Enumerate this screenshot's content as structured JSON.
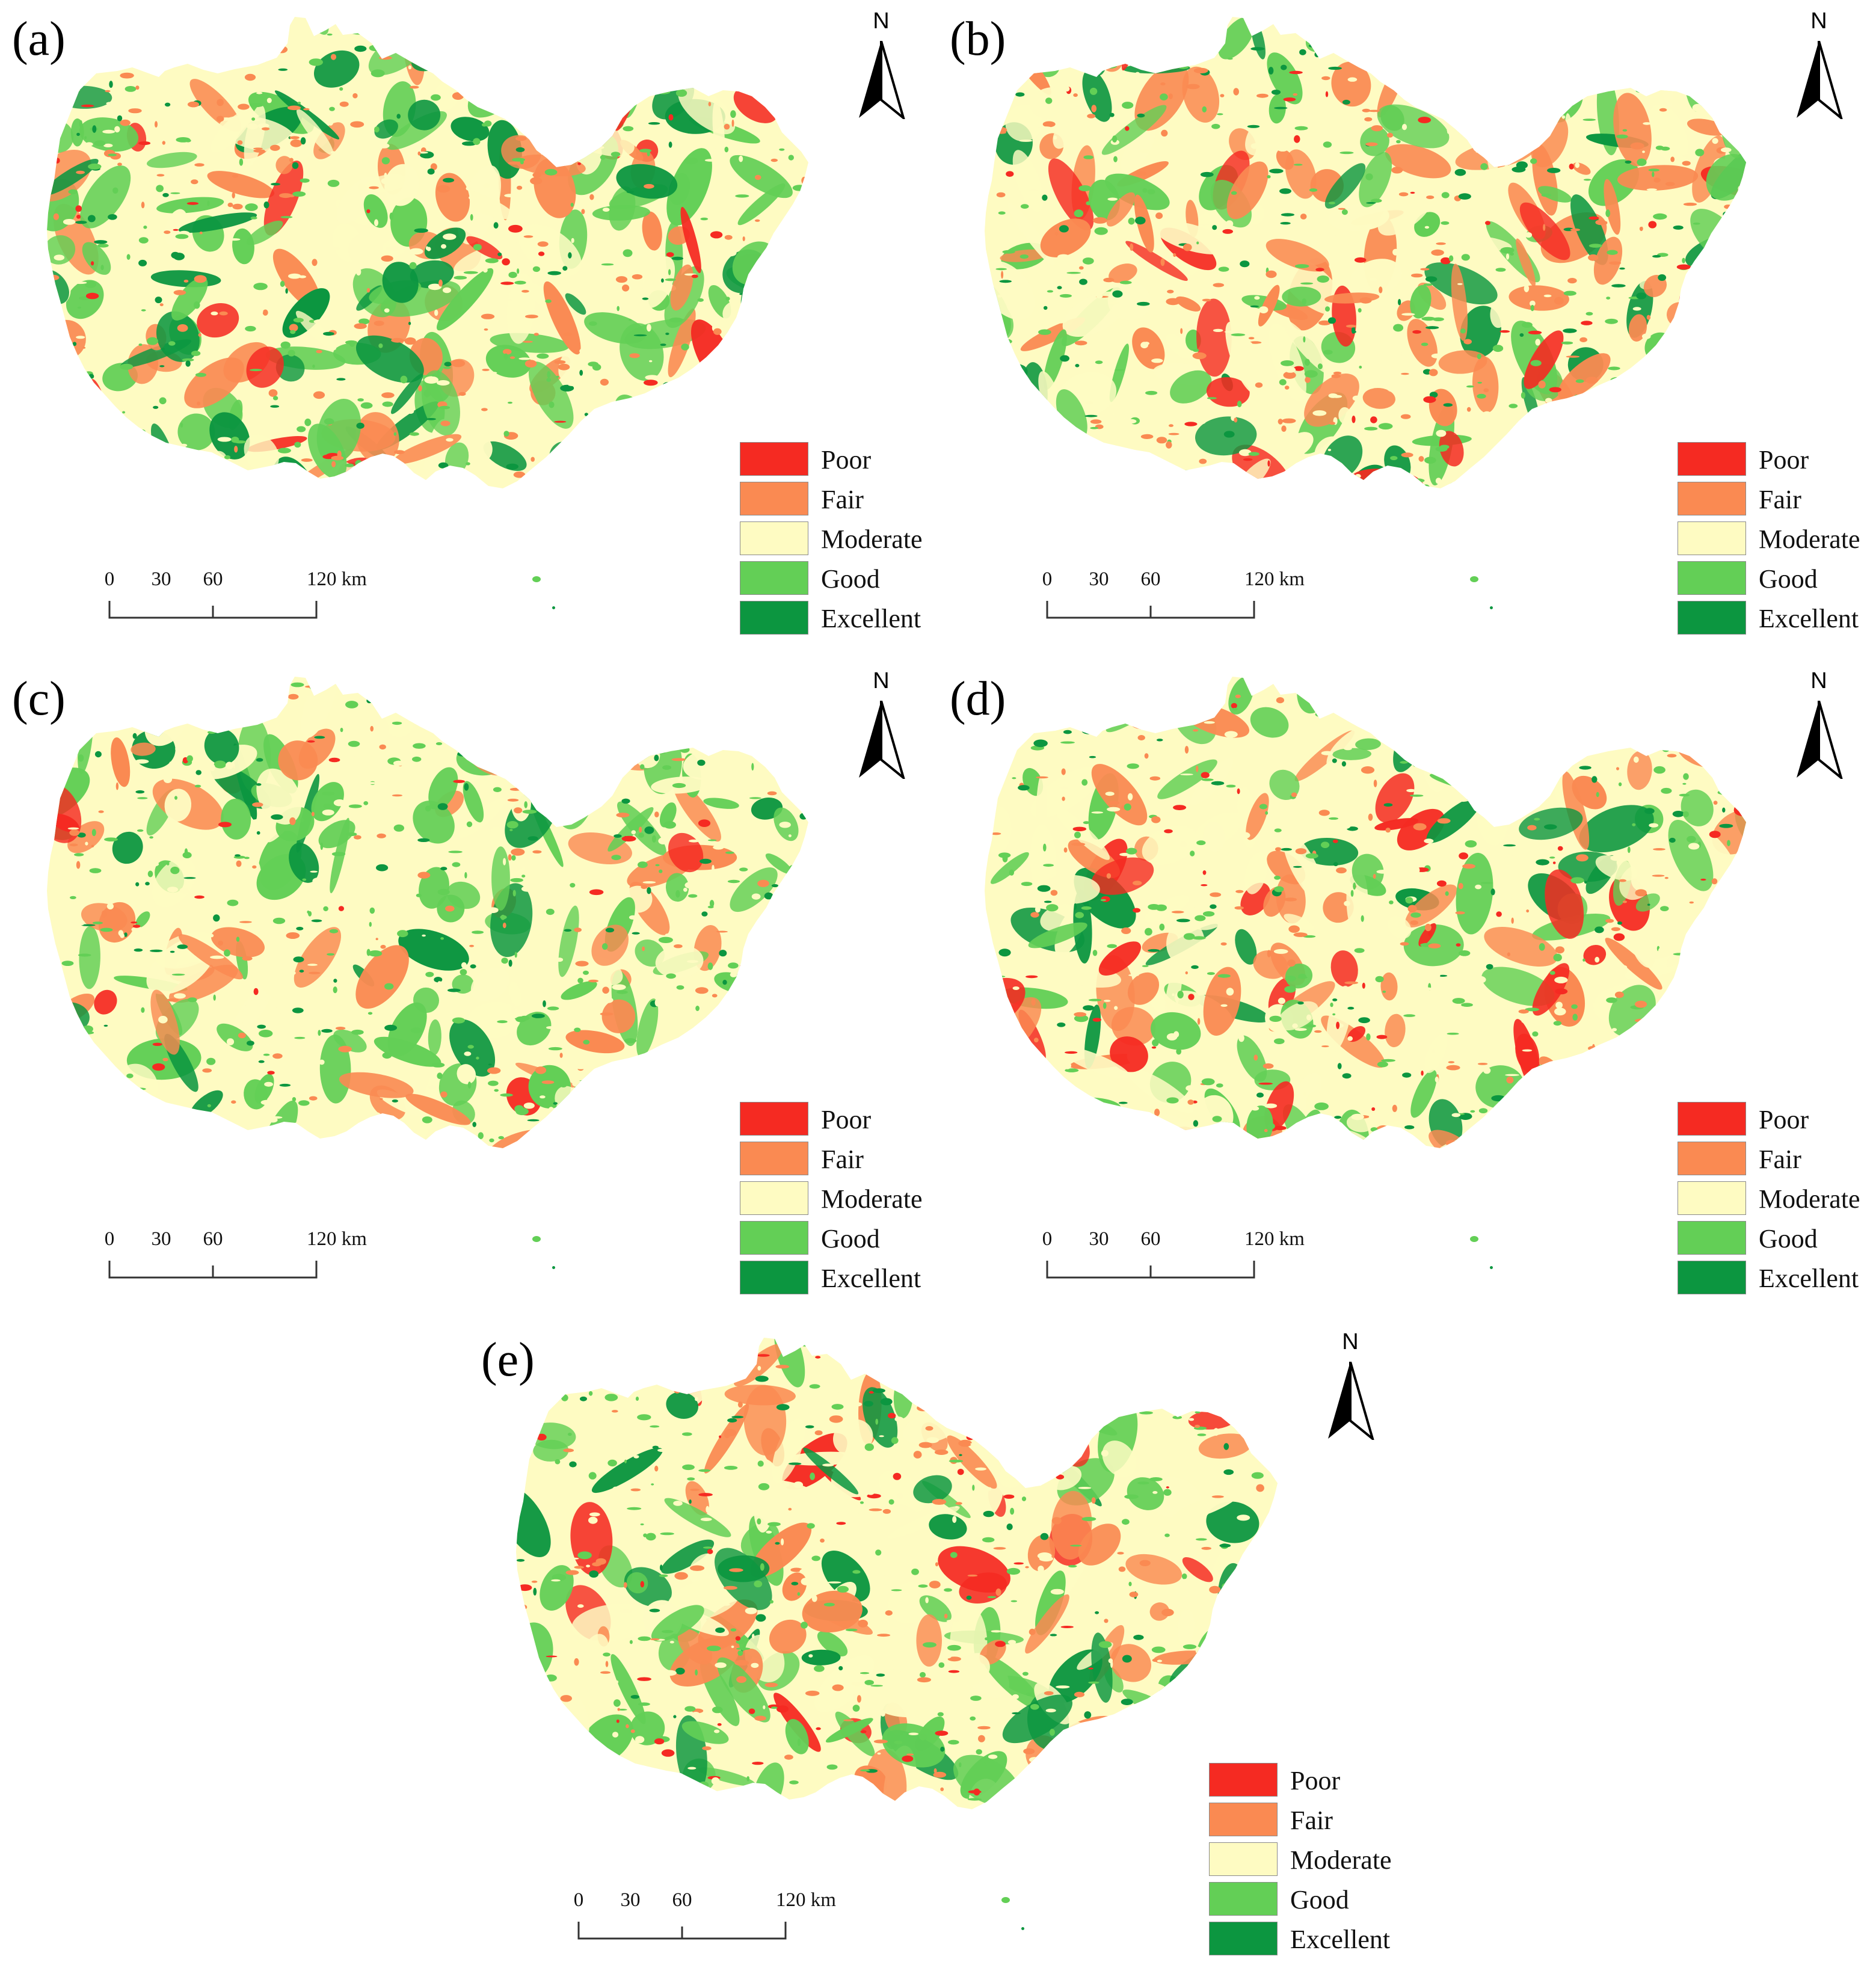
{
  "figure": {
    "panels": [
      {
        "label": "(a)",
        "variant": 0
      },
      {
        "label": "(b)",
        "variant": 1
      },
      {
        "label": "(c)",
        "variant": 2
      },
      {
        "label": "(d)",
        "variant": 3
      },
      {
        "label": "(e)",
        "variant": 4
      }
    ],
    "north_arrow": {
      "letter": "N"
    },
    "legend": {
      "items": [
        {
          "label": "Poor",
          "color": "#f52a22"
        },
        {
          "label": "Fair",
          "color": "#fa8a52"
        },
        {
          "label": "Moderate",
          "color": "#fefbc2"
        },
        {
          "label": "Good",
          "color": "#63cf56"
        },
        {
          "label": "Excellent",
          "color": "#0c9640"
        }
      ]
    },
    "scale_bar": {
      "ticks": [
        {
          "value": "0"
        },
        {
          "value": "30"
        },
        {
          "value": "60"
        },
        {
          "value": "120 km"
        }
      ]
    }
  }
}
